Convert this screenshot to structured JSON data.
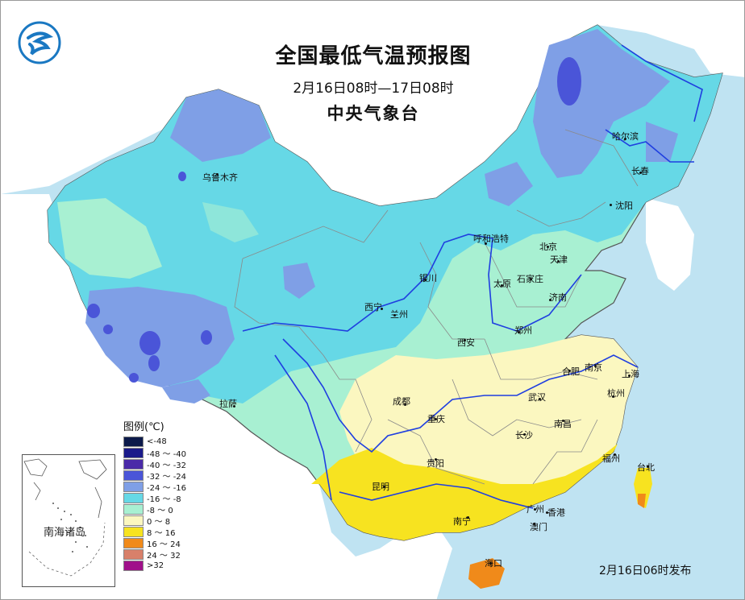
{
  "map": {
    "title": "全国最低气温预报图",
    "period": "2月16日08时—17日08时",
    "agency": "中央气象台",
    "issue_time": "2月16日06时发布",
    "inset_label": "南海诸岛",
    "colors": {
      "ocean": "#bfe3f2",
      "neighbor_land": "#ffffff",
      "river": "#1f3fe0",
      "province_border": "#8a8a8a"
    },
    "cities": [
      {
        "name": "乌鲁木齐"
      },
      {
        "name": "哈尔滨"
      },
      {
        "name": "长春"
      },
      {
        "name": "沈阳"
      },
      {
        "name": "呼和浩特"
      },
      {
        "name": "北京"
      },
      {
        "name": "天津"
      },
      {
        "name": "银川"
      },
      {
        "name": "太原"
      },
      {
        "name": "石家庄"
      },
      {
        "name": "西宁"
      },
      {
        "name": "兰州"
      },
      {
        "name": "济南"
      },
      {
        "name": "郑州"
      },
      {
        "name": "西安"
      },
      {
        "name": "合肥"
      },
      {
        "name": "南京"
      },
      {
        "name": "上海"
      },
      {
        "name": "武汉"
      },
      {
        "name": "杭州"
      },
      {
        "name": "成都"
      },
      {
        "name": "重庆"
      },
      {
        "name": "拉萨"
      },
      {
        "name": "长沙"
      },
      {
        "name": "南昌"
      },
      {
        "name": "贵阳"
      },
      {
        "name": "福州"
      },
      {
        "name": "台北"
      },
      {
        "name": "昆明"
      },
      {
        "name": "南宁"
      },
      {
        "name": "广州"
      },
      {
        "name": "香港"
      },
      {
        "name": "澳门"
      },
      {
        "name": "海口"
      }
    ]
  },
  "legend": {
    "title": "图例(℃)",
    "items": [
      {
        "label": "<-48",
        "color": "#0c1a4a"
      },
      {
        "label": "-48 ～ -40",
        "color": "#1a1a8a"
      },
      {
        "label": "-40 ～ -32",
        "color": "#4a2aa8"
      },
      {
        "label": "-32 ～ -24",
        "color": "#4a55d8"
      },
      {
        "label": "-24 ～ -16",
        "color": "#7f9fe6"
      },
      {
        "label": "-16 ～ -8",
        "color": "#66d8e6"
      },
      {
        "label": "-8 ～ 0",
        "color": "#a8f0d2"
      },
      {
        "label": "0 ～ 8",
        "color": "#fbf7c0"
      },
      {
        "label": "8 ～ 16",
        "color": "#f7e320"
      },
      {
        "label": "16 ～ 24",
        "color": "#f08a1a"
      },
      {
        "label": "24 ～ 32",
        "color": "#d8806a"
      },
      {
        "label": ">32",
        "color": "#a0108a"
      }
    ]
  }
}
